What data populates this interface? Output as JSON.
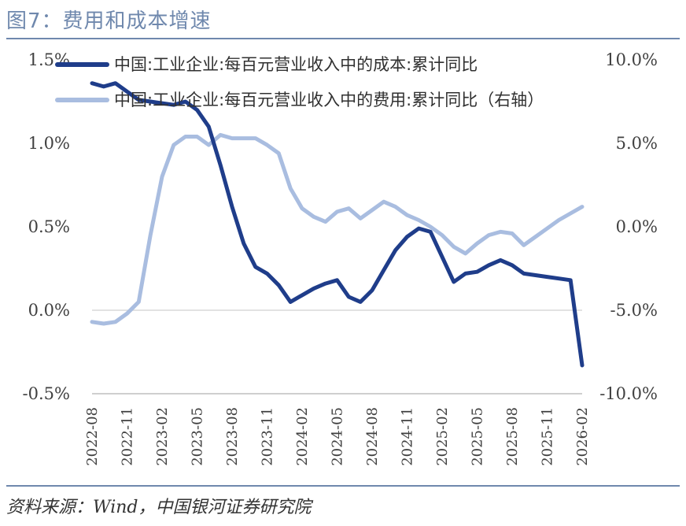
{
  "figure": {
    "title": "图7：费用和成本增速",
    "source": "资料来源：Wind，中国银河证券研究院"
  },
  "chart_data": {
    "type": "line",
    "x": [
      "2022-08",
      "2022-09",
      "2022-10",
      "2022-11",
      "2022-12",
      "2023-01",
      "2023-02",
      "2023-03",
      "2023-04",
      "2023-05",
      "2023-06",
      "2023-07",
      "2023-08",
      "2023-09",
      "2023-10",
      "2023-11",
      "2023-12",
      "2024-01",
      "2024-02",
      "2024-03",
      "2024-04",
      "2024-05",
      "2024-06",
      "2024-07",
      "2024-08",
      "2024-09",
      "2024-10",
      "2024-11",
      "2024-12",
      "2025-01",
      "2025-02",
      "2025-03",
      "2025-04",
      "2025-05",
      "2025-06",
      "2025-07",
      "2025-08",
      "2025-09",
      "2025-10",
      "2025-11",
      "2025-12",
      "2026-01",
      "2026-02"
    ],
    "x_tick_labels": [
      "2022-08",
      "2022-11",
      "2023-02",
      "2023-05",
      "2023-08",
      "2023-11",
      "2024-02",
      "2024-05",
      "2024-08",
      "2024-11",
      "2025-02",
      "2025-05",
      "2025-08",
      "2025-11",
      "2026-02"
    ],
    "y_left": {
      "ticks": [
        "1.5%",
        "1.0%",
        "0.5%",
        "0.0%",
        "-0.5%"
      ],
      "range": [
        -0.5,
        1.5
      ]
    },
    "y_right": {
      "ticks": [
        "10.0%",
        "5.0%",
        "0.0%",
        "-5.0%",
        "-10.0%"
      ],
      "range": [
        -10,
        10
      ]
    },
    "grid": false,
    "legend_position": "top-left",
    "series": [
      {
        "name": "中国:工业企业:每百元营业收入中的成本:累计同比",
        "axis": "left",
        "color": "#1f3d8a",
        "values": [
          1.36,
          1.34,
          1.36,
          1.31,
          1.26,
          1.25,
          1.24,
          1.23,
          1.25,
          1.2,
          1.1,
          0.87,
          0.62,
          0.4,
          0.26,
          0.22,
          0.15,
          0.05,
          0.09,
          0.13,
          0.16,
          0.18,
          0.08,
          0.05,
          0.12,
          0.24,
          0.36,
          0.44,
          0.49,
          0.47,
          0.32,
          0.17,
          0.22,
          0.23,
          0.27,
          0.3,
          0.27,
          0.22,
          0.21,
          0.2,
          0.19,
          0.18,
          -0.33
        ]
      },
      {
        "name": "中国:工业企业:每百元营业收入中的费用:累计同比（右轴）",
        "axis": "right",
        "color": "#a9bde0",
        "values": [
          -5.7,
          -5.8,
          -5.7,
          -5.2,
          -4.5,
          -0.5,
          3.0,
          4.9,
          5.4,
          5.4,
          4.9,
          5.5,
          5.3,
          5.3,
          5.3,
          4.9,
          4.4,
          2.3,
          1.1,
          0.6,
          0.3,
          0.9,
          1.1,
          0.5,
          1.0,
          1.5,
          1.2,
          0.7,
          0.4,
          0.0,
          -0.5,
          -1.2,
          -1.6,
          -1.0,
          -0.5,
          -0.3,
          -0.4,
          -1.1,
          -0.6,
          -0.1,
          0.4,
          0.8,
          1.2
        ]
      }
    ]
  }
}
